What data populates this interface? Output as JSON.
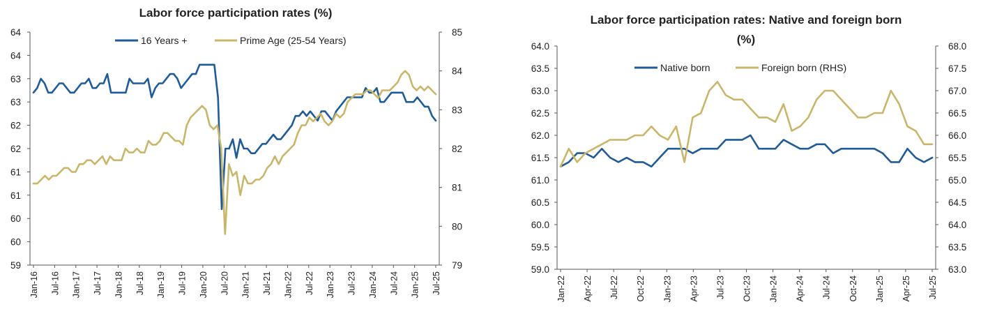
{
  "chart_data": [
    {
      "type": "line",
      "title": "Labor force participation rates (%)",
      "title_line2": "",
      "x_tick_labels": [
        "Jan-16",
        "Jul-16",
        "Jan-17",
        "Jul-17",
        "Jan-18",
        "Jul-18",
        "Jan-19",
        "Jul-19",
        "Jan-20",
        "Jul-20",
        "Jan-21",
        "Jul-21",
        "Jan-22",
        "Jul-22",
        "Jan-23",
        "Jul-23",
        "Jan-24",
        "Jul-24",
        "Jan-25",
        "Jul-25"
      ],
      "y_left_tick_labels": [
        "59",
        "60",
        "60",
        "61",
        "61",
        "62",
        "62",
        "63",
        "63",
        "64",
        "64"
      ],
      "y_left_range": [
        59,
        64
      ],
      "y_right_tick_labels": [
        "79",
        "80",
        "81",
        "82",
        "83",
        "84",
        "85"
      ],
      "y_right_range": [
        79,
        85
      ],
      "series": [
        {
          "name": "16 Years +",
          "axis": "left",
          "color": "#1f5a99",
          "values": [
            62.7,
            62.8,
            63.0,
            62.9,
            62.7,
            62.7,
            62.8,
            62.9,
            62.9,
            62.8,
            62.7,
            62.7,
            62.8,
            62.9,
            62.9,
            63.0,
            62.8,
            62.8,
            62.9,
            62.9,
            63.1,
            62.7,
            62.7,
            62.7,
            62.7,
            62.7,
            63.0,
            62.9,
            62.9,
            62.9,
            62.9,
            63.0,
            62.6,
            62.8,
            62.9,
            62.9,
            63.0,
            63.1,
            63.1,
            63.0,
            62.8,
            62.9,
            63.0,
            63.1,
            63.1,
            63.3,
            63.3,
            63.3,
            63.3,
            63.3,
            62.6,
            60.2,
            61.5,
            61.5,
            61.7,
            61.3,
            61.7,
            61.5,
            61.5,
            61.4,
            61.4,
            61.5,
            61.6,
            61.6,
            61.7,
            61.8,
            61.7,
            61.7,
            61.8,
            61.9,
            62.0,
            62.2,
            62.2,
            62.3,
            62.2,
            62.3,
            62.2,
            62.1,
            62.3,
            62.3,
            62.2,
            62.1,
            62.3,
            62.4,
            62.5,
            62.6,
            62.6,
            62.6,
            62.6,
            62.6,
            62.8,
            62.7,
            62.7,
            62.8,
            62.5,
            62.5,
            62.6,
            62.7,
            62.7,
            62.7,
            62.7,
            62.5,
            62.5,
            62.5,
            62.6,
            62.5,
            62.4,
            62.4,
            62.2,
            62.1
          ],
          "x_start": "Jan-16"
        },
        {
          "name": "Prime Age (25-54 Years)",
          "axis": "right",
          "color": "#c9b66a",
          "values": [
            81.1,
            81.1,
            81.2,
            81.3,
            81.2,
            81.3,
            81.3,
            81.4,
            81.5,
            81.5,
            81.4,
            81.4,
            81.6,
            81.6,
            81.7,
            81.7,
            81.6,
            81.7,
            81.8,
            81.6,
            81.8,
            81.7,
            81.7,
            81.7,
            82.0,
            81.9,
            81.9,
            82.0,
            81.9,
            81.9,
            82.2,
            82.1,
            82.1,
            82.2,
            82.4,
            82.4,
            82.3,
            82.2,
            82.2,
            82.1,
            82.6,
            82.8,
            82.9,
            83.0,
            83.1,
            83.0,
            82.6,
            82.5,
            82.6,
            82.0,
            79.8,
            81.6,
            81.3,
            81.4,
            80.8,
            81.3,
            81.1,
            81.1,
            81.2,
            81.2,
            81.3,
            81.5,
            81.6,
            81.8,
            81.6,
            81.8,
            81.9,
            82.0,
            82.1,
            82.4,
            82.6,
            82.6,
            82.8,
            82.7,
            82.8,
            82.9,
            82.7,
            82.6,
            82.7,
            82.9,
            82.8,
            82.9,
            83.2,
            83.3,
            83.4,
            83.4,
            83.4,
            83.5,
            83.5,
            83.4,
            83.3,
            83.5,
            83.5,
            83.5,
            83.6,
            83.7,
            83.9,
            84.0,
            83.9,
            83.6,
            83.5,
            83.6,
            83.5,
            83.6,
            83.5,
            83.4
          ],
          "x_start": "Jan-16"
        }
      ]
    },
    {
      "type": "line",
      "title": "Labor force participation rates: Native and foreign born",
      "title_line2": "(%)",
      "x_tick_labels": [
        "Jan-22",
        "Apr-22",
        "Jul-22",
        "Oct-22",
        "Jan-23",
        "Apr-23",
        "Jul-23",
        "Oct-23",
        "Jan-24",
        "Apr-24",
        "Jul-24",
        "Oct-24",
        "Jan-25",
        "Apr-25",
        "Jul-25"
      ],
      "y_left_tick_labels": [
        "59.0",
        "59.5",
        "60.0",
        "60.5",
        "61.0",
        "61.5",
        "62.0",
        "62.5",
        "63.0",
        "63.5",
        "64.0"
      ],
      "y_left_range": [
        59,
        64
      ],
      "y_right_tick_labels": [
        "63.0",
        "63.5",
        "64.0",
        "64.5",
        "65.0",
        "65.5",
        "66.0",
        "66.5",
        "67.0",
        "67.5",
        "68.0"
      ],
      "y_right_range": [
        63,
        68
      ],
      "series": [
        {
          "name": "Native born",
          "axis": "left",
          "color": "#1f5a99",
          "values": [
            61.3,
            61.4,
            61.6,
            61.6,
            61.5,
            61.7,
            61.5,
            61.4,
            61.5,
            61.4,
            61.4,
            61.3,
            61.5,
            61.7,
            61.7,
            61.7,
            61.6,
            61.7,
            61.7,
            61.7,
            61.9,
            61.9,
            61.9,
            62.0,
            61.7,
            61.7,
            61.7,
            61.9,
            61.8,
            61.7,
            61.7,
            61.8,
            61.8,
            61.6,
            61.7,
            61.7,
            61.7,
            61.7,
            61.7,
            61.6,
            61.4,
            61.4,
            61.7,
            61.5,
            61.4,
            61.5
          ],
          "x_start": "Jan-22"
        },
        {
          "name": "Foreign born (RHS)",
          "axis": "right",
          "color": "#c9b66a",
          "values": [
            65.3,
            65.7,
            65.4,
            65.6,
            65.7,
            65.8,
            65.9,
            65.9,
            65.9,
            66.0,
            66.0,
            66.2,
            66.0,
            65.9,
            66.2,
            65.4,
            66.4,
            66.5,
            67.0,
            67.2,
            66.9,
            66.8,
            66.8,
            66.6,
            66.4,
            66.4,
            66.3,
            66.7,
            66.1,
            66.2,
            66.4,
            66.8,
            67.0,
            67.0,
            66.8,
            66.6,
            66.4,
            66.4,
            66.5,
            66.5,
            67.0,
            66.7,
            66.2,
            66.1,
            65.8,
            65.8
          ],
          "x_start": "Jan-22"
        }
      ]
    }
  ]
}
